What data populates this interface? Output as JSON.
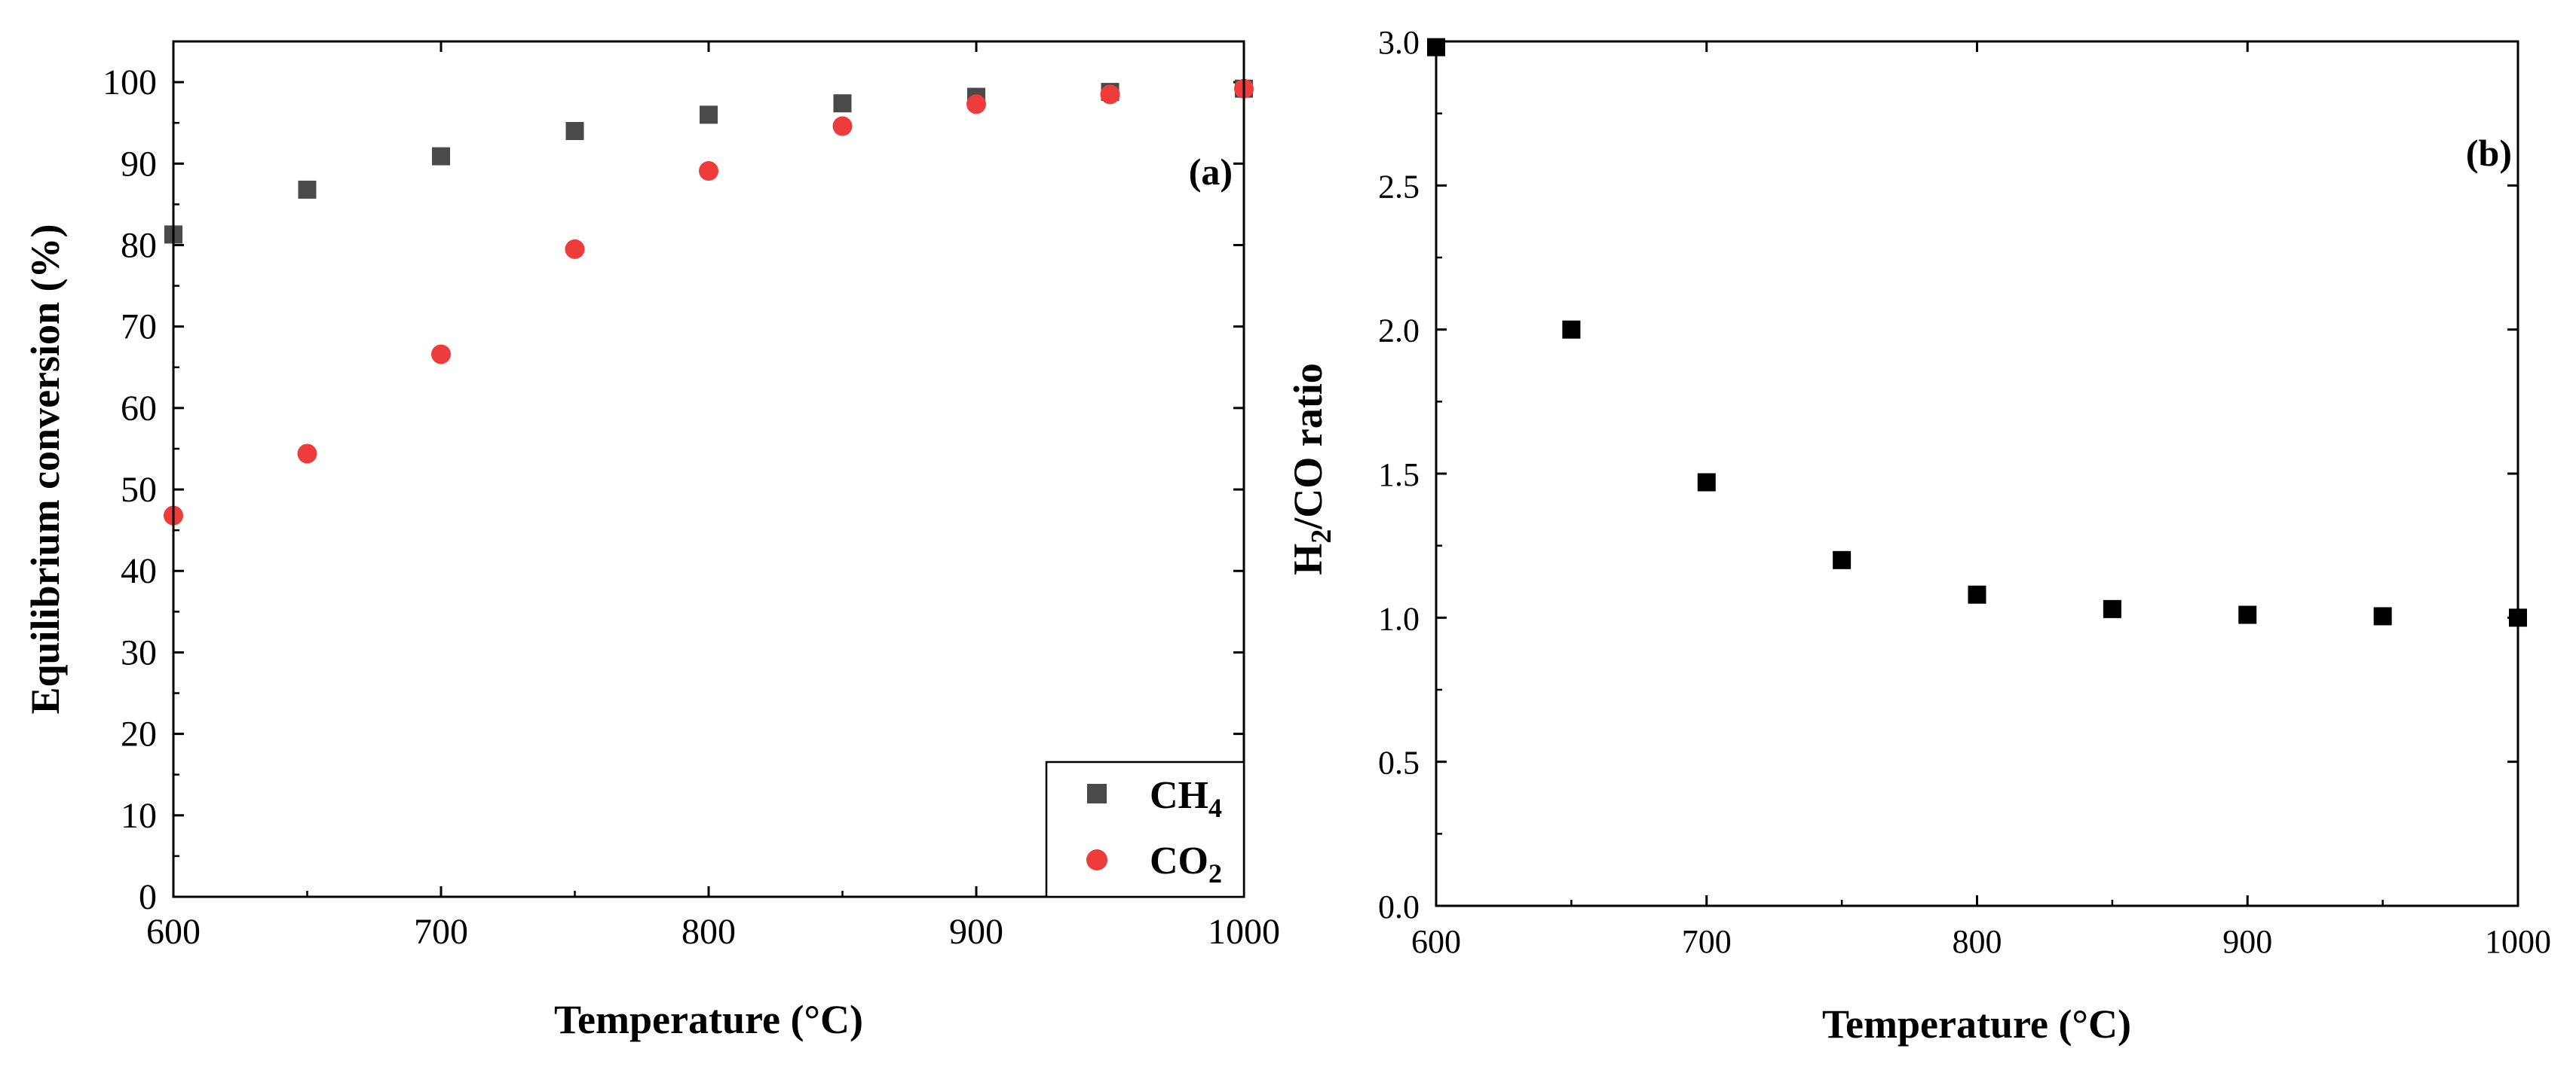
{
  "chart_data": [
    {
      "type": "scatter",
      "panel_label": "(a)",
      "xlabel": "Temperature (°C)",
      "ylabel": "Equilibrium conversion (%)",
      "xlim": [
        600,
        1000
      ],
      "ylim": [
        0,
        105
      ],
      "x_ticks": [
        600,
        700,
        800,
        900,
        1000
      ],
      "y_ticks": [
        0,
        10,
        20,
        30,
        40,
        50,
        60,
        70,
        80,
        90,
        100
      ],
      "legend_position": "bottom-right",
      "series": [
        {
          "name": "CH4",
          "legend_main": "CH",
          "legend_sub": "4",
          "marker": "square",
          "color": "#4a4a4a",
          "x": [
            600,
            650,
            700,
            750,
            800,
            850,
            900,
            950,
            1000
          ],
          "y": [
            81.3,
            86.8,
            90.9,
            94.0,
            96.0,
            97.4,
            98.2,
            98.8,
            99.2
          ]
        },
        {
          "name": "CO2",
          "legend_main": "CO",
          "legend_sub": "2",
          "marker": "circle",
          "color": "#ee3b3b",
          "x": [
            600,
            650,
            700,
            750,
            800,
            850,
            900,
            950,
            1000
          ],
          "y": [
            46.8,
            54.4,
            66.6,
            79.5,
            89.1,
            94.6,
            97.3,
            98.5,
            99.2
          ]
        }
      ]
    },
    {
      "type": "scatter",
      "panel_label": "(b)",
      "xlabel": "Temperature (°C)",
      "ylabel_main": "H",
      "ylabel_sub": "2",
      "ylabel_rest": "/CO ratio",
      "xlim": [
        600,
        1000
      ],
      "ylim": [
        0,
        3.0
      ],
      "x_ticks": [
        600,
        700,
        800,
        900,
        1000
      ],
      "y_ticks": [
        "0.0",
        "0.5",
        "1.0",
        "1.5",
        "2.0",
        "2.5",
        "3.0"
      ],
      "series": [
        {
          "name": "H2/CO",
          "marker": "square",
          "color": "#000000",
          "x": [
            600,
            650,
            700,
            750,
            800,
            850,
            900,
            950,
            1000
          ],
          "y": [
            2.98,
            2.0,
            1.47,
            1.2,
            1.08,
            1.03,
            1.01,
            1.005,
            1.0
          ]
        }
      ]
    }
  ]
}
